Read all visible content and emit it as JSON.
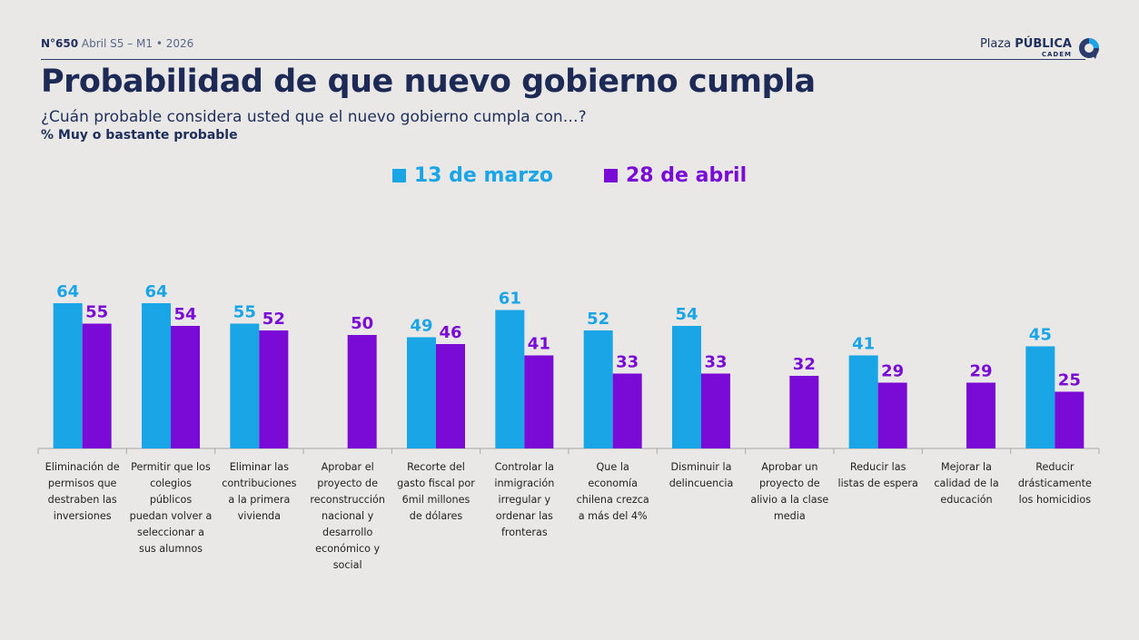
{
  "header": {
    "issue": "N°650",
    "period": "Abril S5 – M1 • 2026"
  },
  "brand": {
    "name_light": "Plaza ",
    "name_bold": "PÚBLICA",
    "sub": "CADEM",
    "logo_icon": "cadem-logo-icon"
  },
  "title": "Probabilidad de que nuevo gobierno cumpla",
  "subtitle": "¿Cuán probable considera usted que el nuevo gobierno cumpla con…?",
  "note": "% Muy o bastante probable",
  "colors": {
    "series1": "#1aa5e6",
    "series2": "#7a0bd6",
    "axis": "#a9a9a9",
    "title": "#1c2a55"
  },
  "chart_data": {
    "type": "bar",
    "legend_position": "top-center",
    "categories": [
      [
        "Eliminación de",
        "permisos que",
        "destraben las",
        "inversiones"
      ],
      [
        "Permitir que los",
        "colegios",
        "públicos",
        "puedan volver a",
        "seleccionar a",
        "sus alumnos"
      ],
      [
        "Eliminar las",
        "contribuciones",
        "a la primera",
        "vivienda"
      ],
      [
        "Aprobar el",
        "proyecto de",
        "reconstrucción",
        "nacional y",
        "desarrollo",
        "económico y",
        "social"
      ],
      [
        "Recorte del",
        "gasto fiscal por",
        "6mil millones",
        "de dólares"
      ],
      [
        "Controlar la",
        "inmigración",
        "irregular y",
        "ordenar las",
        "fronteras"
      ],
      [
        "Que la",
        "economía",
        "chilena crezca",
        "a más del 4%"
      ],
      [
        "Disminuir la",
        "delincuencia"
      ],
      [
        "Aprobar un",
        "proyecto de",
        "alivio a la clase",
        "media"
      ],
      [
        "Reducir las",
        "listas de espera"
      ],
      [
        "Mejorar la",
        "calidad de la",
        "educación"
      ],
      [
        "Reducir",
        "drásticamente",
        "los homicidios"
      ]
    ],
    "series": [
      {
        "name": "13 de marzo",
        "values": [
          64,
          64,
          55,
          null,
          49,
          61,
          52,
          54,
          null,
          41,
          null,
          45
        ]
      },
      {
        "name": "28 de abril",
        "values": [
          55,
          54,
          52,
          50,
          46,
          41,
          33,
          33,
          32,
          29,
          29,
          25
        ]
      }
    ],
    "ylim": [
      0,
      64
    ],
    "grid": false
  }
}
